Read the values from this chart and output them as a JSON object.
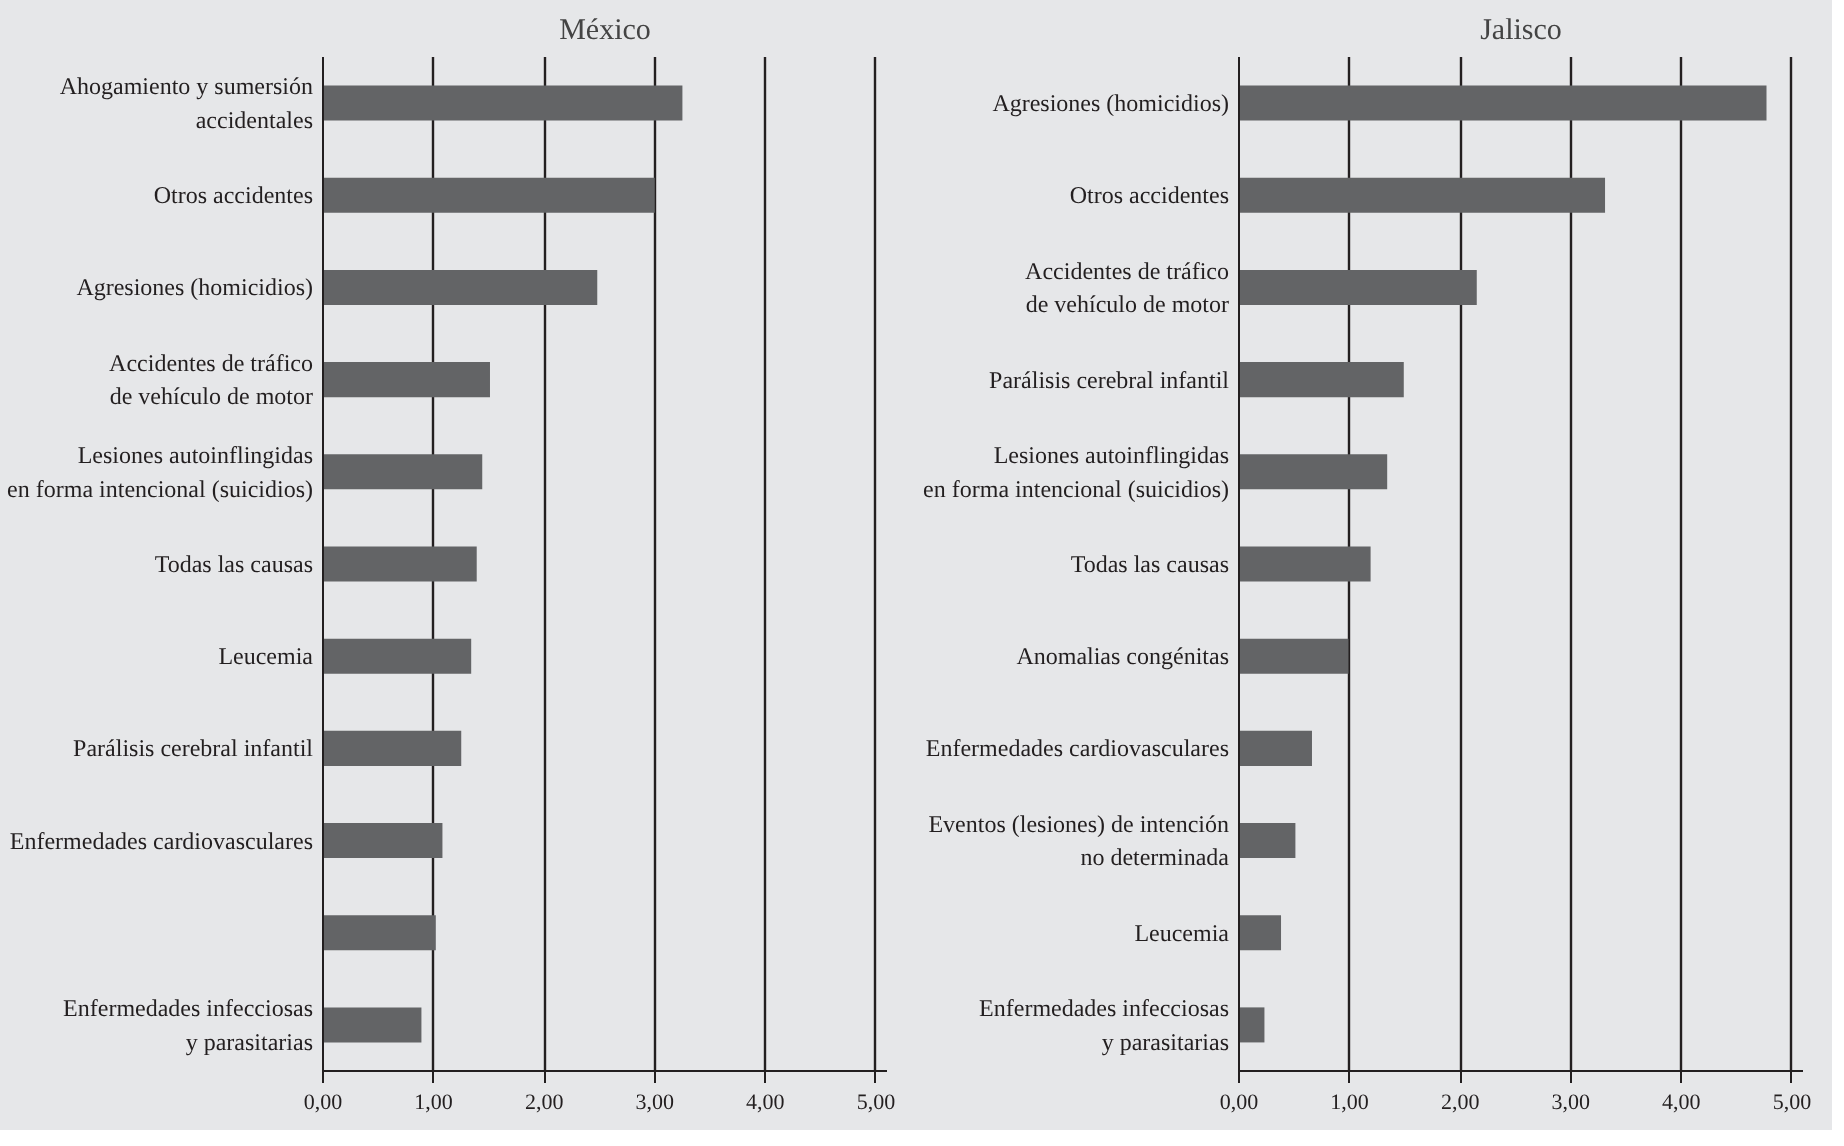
{
  "chart_data": [
    {
      "type": "bar",
      "orientation": "horizontal",
      "title": "México",
      "categories": [
        "Ahogamiento y sumersión\naccidentales",
        "Otros accidentes",
        "Agresiones (homicidios)",
        "Accidentes de tráfico\nde vehículo de motor",
        "Lesiones autoinflingidas\nen forma intencional (suicidios)",
        "Todas las causas",
        "Leucemia",
        "Parálisis cerebral infantil",
        "Enfermedades cardiovasculares",
        null,
        "Enfermedades infecciosas\ny parasitarias"
      ],
      "values": [
        3.25,
        3.0,
        2.48,
        1.51,
        1.44,
        1.39,
        1.34,
        1.25,
        1.08,
        1.02,
        0.89
      ],
      "color": "#636466",
      "xlim": [
        0,
        5.1
      ],
      "xticks": [
        {
          "value": 0,
          "label": "0,00"
        },
        {
          "value": 1,
          "label": "1,00"
        },
        {
          "value": 2,
          "label": "2,00"
        },
        {
          "value": 3,
          "label": "3,00"
        },
        {
          "value": 4,
          "label": "4,00"
        },
        {
          "value": 5,
          "label": "5,00"
        }
      ],
      "grid": "x"
    },
    {
      "type": "bar",
      "orientation": "horizontal",
      "title": "Jalisco",
      "categories": [
        "Agresiones (homicidios)",
        "Otros accidentes",
        "Accidentes de tráfico\nde vehículo de motor",
        "Parálisis cerebral infantil",
        "Lesiones autoinflingidas\nen forma intencional (suicidios)",
        "Todas las causas",
        "Anomalias congénitas",
        "Enfermedades cardiovasculares",
        "Eventos (lesiones) de intención\nno determinada",
        "Leucemia",
        "Enfermedades infecciosas\ny parasitarias"
      ],
      "values": [
        4.77,
        3.31,
        2.15,
        1.49,
        1.34,
        1.19,
        0.99,
        0.66,
        0.51,
        0.38,
        0.23
      ],
      "color": "#636466",
      "xlim": [
        0,
        5.1
      ],
      "xticks": [
        {
          "value": 0,
          "label": "0,00"
        },
        {
          "value": 1,
          "label": "1,00"
        },
        {
          "value": 2,
          "label": "2,00"
        },
        {
          "value": 3,
          "label": "3,00"
        },
        {
          "value": 4,
          "label": "4,00"
        },
        {
          "value": 5,
          "label": "5,00"
        }
      ],
      "grid": "x"
    }
  ]
}
